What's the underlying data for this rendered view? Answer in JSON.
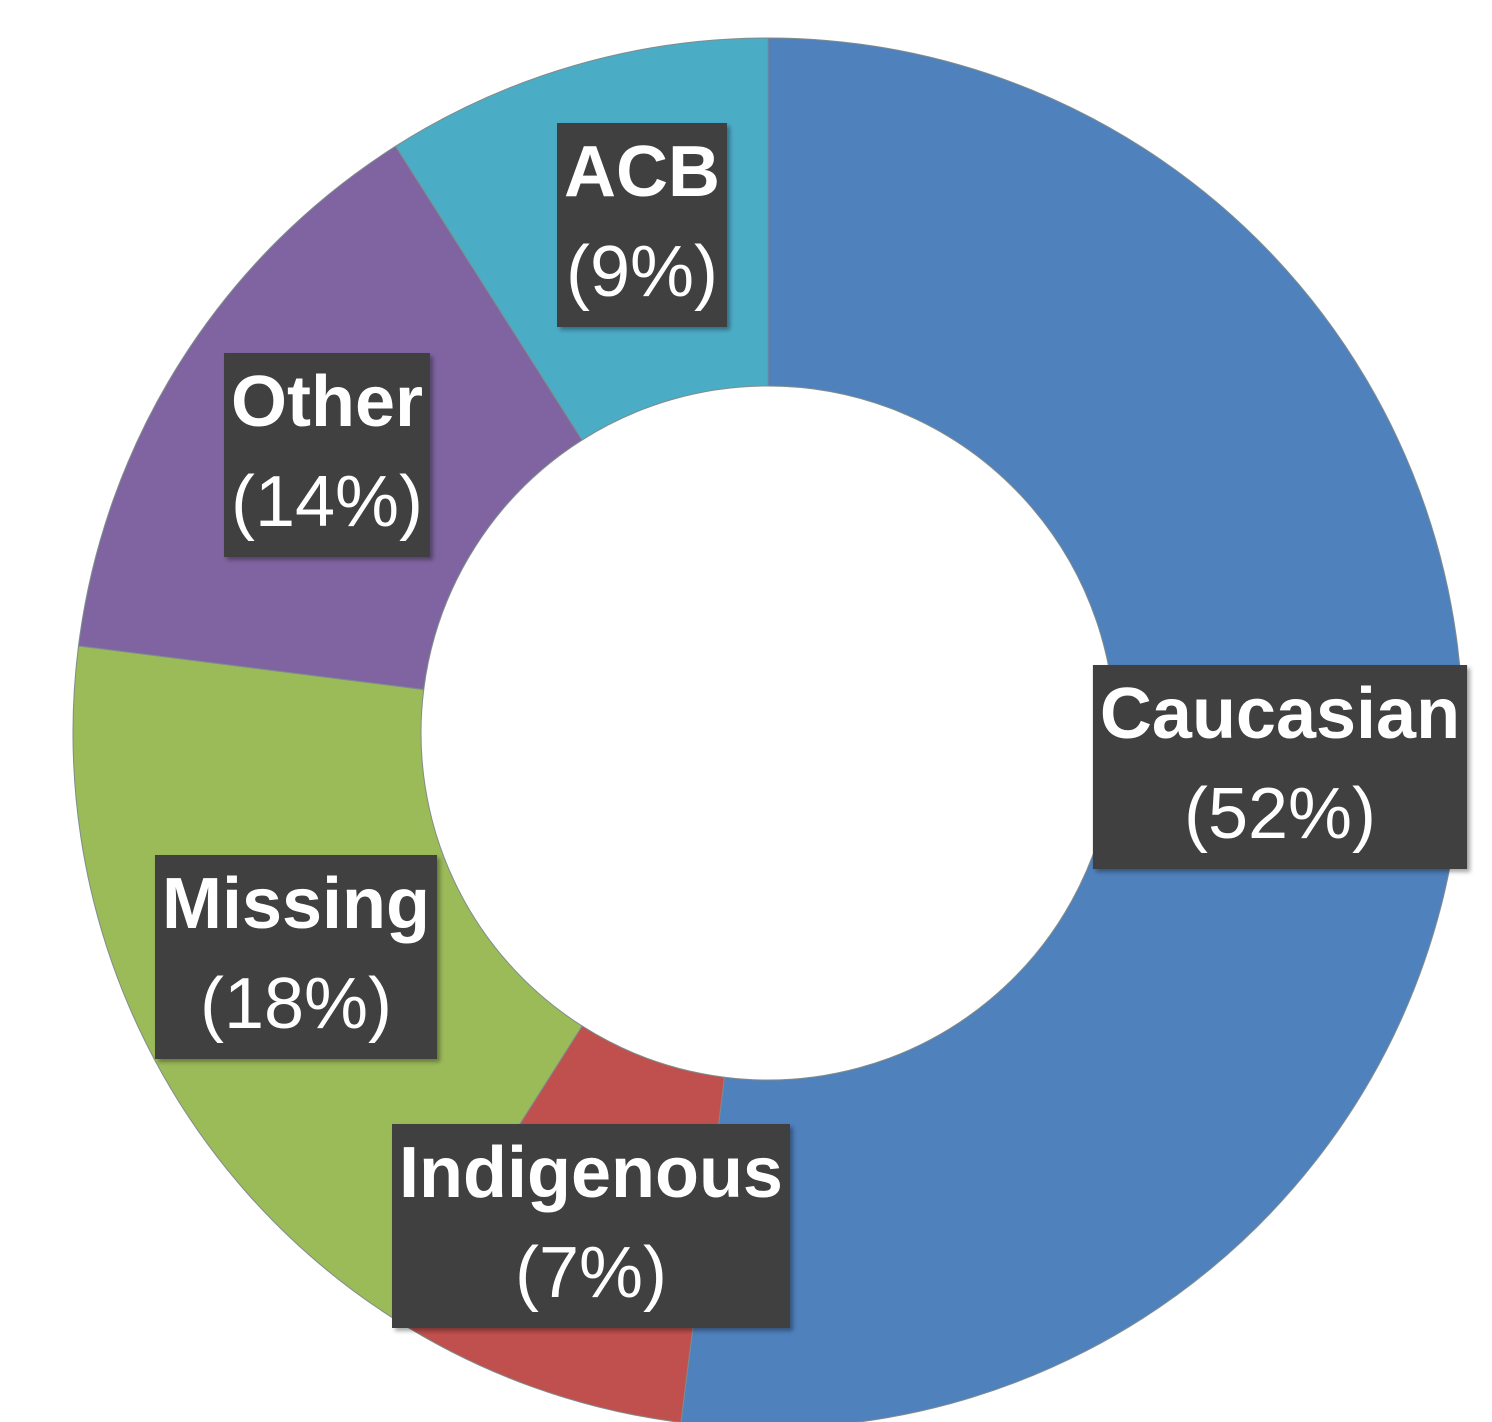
{
  "chart_data": {
    "type": "donut",
    "categories": [
      "Caucasian",
      "Indigenous",
      "Missing",
      "Other",
      "ACB"
    ],
    "values": [
      52,
      7,
      18,
      14,
      9
    ],
    "value_labels": [
      "(52%)",
      "(7%)",
      "(18%)",
      "(14%)",
      "(9%)"
    ],
    "colors": [
      "#4f81bd",
      "#c0504d",
      "#9bbb59",
      "#8064a2",
      "#4bacc6"
    ]
  }
}
